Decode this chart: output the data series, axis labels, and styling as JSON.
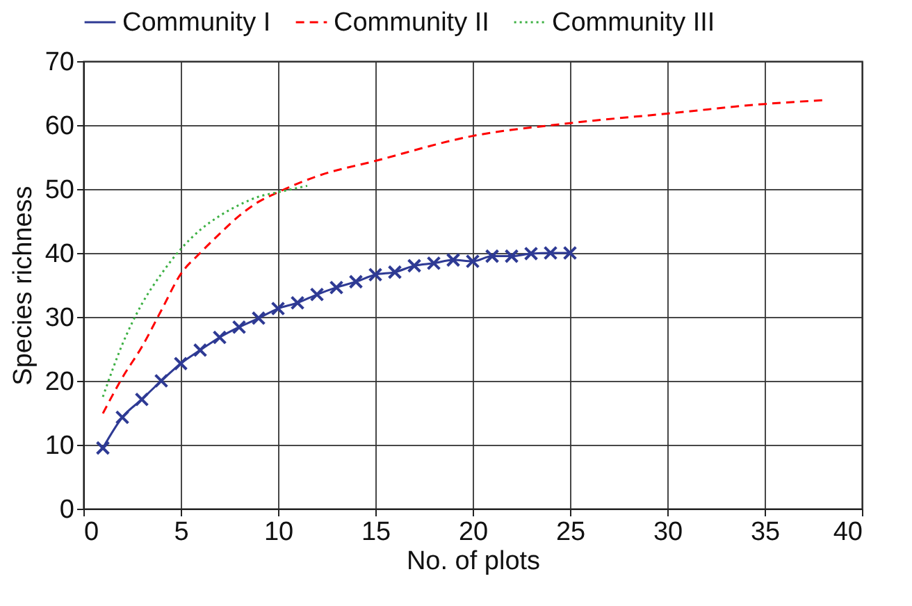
{
  "chart_data": {
    "type": "line",
    "xlabel": "No. of plots",
    "ylabel": "Species richness",
    "xlim": [
      0,
      40
    ],
    "xticks": [
      0,
      5,
      10,
      15,
      20,
      25,
      30,
      35,
      40
    ],
    "ylim": [
      0,
      70
    ],
    "yticks": [
      0,
      10,
      20,
      30,
      40,
      50,
      60,
      70
    ],
    "grid": true,
    "legend": "top",
    "series": [
      {
        "name": "Community I",
        "color": "#2e3a94",
        "marker": "cross",
        "line_style": "solid",
        "x": [
          1,
          2,
          3,
          4,
          5,
          6,
          7,
          8,
          9,
          10,
          11,
          12,
          13,
          14,
          15,
          16,
          17,
          18,
          19,
          20,
          21,
          22,
          23,
          24,
          25
        ],
        "values": [
          9.5,
          14.3,
          17.1,
          20,
          22.7,
          24.8,
          26.8,
          28.4,
          29.8,
          31.3,
          32.2,
          33.5,
          34.6,
          35.5,
          36.6,
          37,
          38,
          38.4,
          38.9,
          38.7,
          39.5,
          39.5,
          39.9,
          40,
          40
        ]
      },
      {
        "name": "Community II",
        "color": "#ff0000",
        "marker": "none",
        "line_style": "dashed",
        "x": [
          1,
          2,
          3,
          4,
          5,
          6,
          7,
          8,
          9,
          10,
          12,
          15,
          20,
          25,
          30,
          35,
          38
        ],
        "values": [
          14.9,
          20.5,
          25.3,
          31,
          36.7,
          40,
          43,
          45.8,
          48,
          49.5,
          52,
          54.4,
          58.3,
          60.3,
          61.8,
          63.3,
          63.9
        ]
      },
      {
        "name": "Community III",
        "color": "#3cb043",
        "marker": "none",
        "line_style": "dotted",
        "x": [
          1,
          2,
          3,
          4,
          5,
          6,
          7,
          8,
          9,
          10,
          11.5
        ],
        "values": [
          17.5,
          25.7,
          32,
          36.7,
          40.6,
          43.6,
          45.8,
          47.5,
          48.8,
          49.5,
          50.5
        ]
      }
    ]
  }
}
